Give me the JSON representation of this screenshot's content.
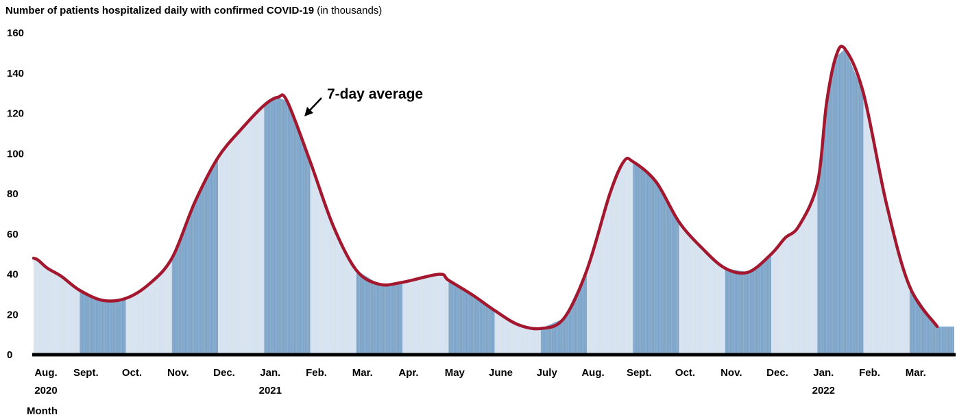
{
  "chart_data": {
    "type": "bar",
    "title": "Number of patients hospitalized daily with confirmed COVID-19",
    "subtitle": "(in thousands)",
    "xlabel": "Month",
    "ylabel": "",
    "ylim": [
      0,
      160
    ],
    "yticks": [
      0,
      20,
      40,
      60,
      80,
      100,
      120,
      140,
      160
    ],
    "grid": false,
    "months": [
      {
        "label": "Aug.",
        "year": "2020"
      },
      {
        "label": "Sept.",
        "year": ""
      },
      {
        "label": "Oct.",
        "year": ""
      },
      {
        "label": "Nov.",
        "year": ""
      },
      {
        "label": "Dec.",
        "year": ""
      },
      {
        "label": "Jan.",
        "year": "2021"
      },
      {
        "label": "Feb.",
        "year": ""
      },
      {
        "label": "Mar.",
        "year": ""
      },
      {
        "label": "Apr.",
        "year": ""
      },
      {
        "label": "May",
        "year": ""
      },
      {
        "label": "June",
        "year": ""
      },
      {
        "label": "July",
        "year": ""
      },
      {
        "label": "Aug.",
        "year": ""
      },
      {
        "label": "Sept.",
        "year": ""
      },
      {
        "label": "Oct.",
        "year": ""
      },
      {
        "label": "Nov.",
        "year": ""
      },
      {
        "label": "Dec.",
        "year": ""
      },
      {
        "label": "Jan.",
        "year": "2022"
      },
      {
        "label": "Feb.",
        "year": ""
      },
      {
        "label": "Mar.",
        "year": ""
      }
    ],
    "series": [
      {
        "name": "7-day average",
        "unit": "thousands",
        "x_month_index": [
          0,
          0.1,
          0.3,
          0.6,
          1,
          1.5,
          2,
          2.5,
          3,
          3.5,
          4,
          4.5,
          5,
          5.3,
          5.5,
          6,
          6.5,
          7,
          7.5,
          8,
          8.8,
          9,
          9.5,
          10,
          10.5,
          11,
          11.5,
          12,
          12.5,
          12.8,
          13,
          13.5,
          14,
          14.5,
          15,
          15.5,
          16,
          16.3,
          16.6,
          17,
          17.2,
          17.4,
          17.6,
          18,
          18.5,
          19,
          19.6
        ],
        "values": [
          48,
          47,
          43,
          39,
          32,
          27,
          28,
          35,
          48,
          76,
          98,
          112,
          124,
          128,
          126,
          96,
          64,
          42,
          35,
          36,
          40,
          37,
          30,
          22,
          15,
          13,
          18,
          42,
          80,
          96,
          96,
          86,
          66,
          53,
          43,
          41,
          50,
          58,
          64,
          85,
          125,
          148,
          152,
          130,
          75,
          34,
          14
        ]
      }
    ],
    "annotations": [
      {
        "text": "7-day average"
      }
    ],
    "colors": {
      "line": "#a3182f",
      "bar_dark": "#7ea5c9",
      "bar_light": "#d6e2ef",
      "axis": "#000000"
    }
  }
}
